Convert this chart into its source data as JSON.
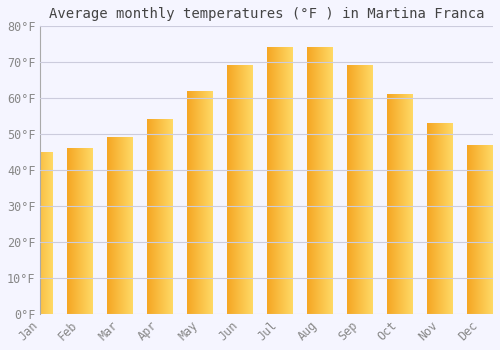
{
  "title": "Average monthly temperatures (°F ) in Martina Franca",
  "months": [
    "Jan",
    "Feb",
    "Mar",
    "Apr",
    "May",
    "Jun",
    "Jul",
    "Aug",
    "Sep",
    "Oct",
    "Nov",
    "Dec"
  ],
  "values": [
    45,
    46,
    49,
    54,
    62,
    69,
    74,
    74,
    69,
    61,
    53,
    47
  ],
  "bar_color_left": "#F5A623",
  "bar_color_right": "#FFD966",
  "background_color": "#F5F5FF",
  "grid_color": "#CCCCDD",
  "text_color": "#888888",
  "title_color": "#444444",
  "ylim": [
    0,
    80
  ],
  "ytick_step": 10,
  "title_fontsize": 10,
  "tick_fontsize": 8.5
}
